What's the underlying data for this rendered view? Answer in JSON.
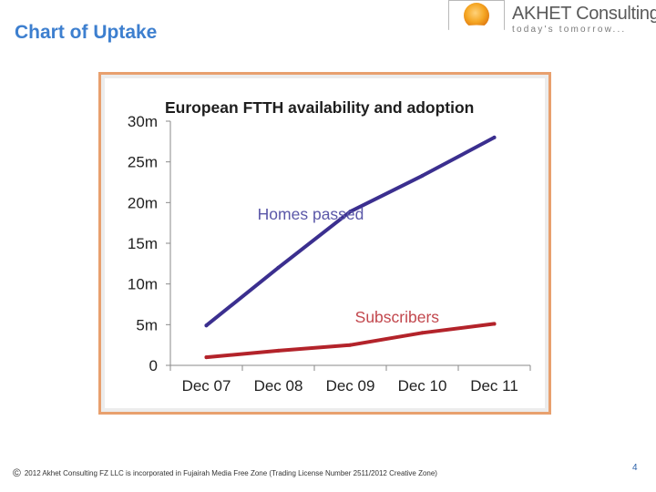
{
  "slide": {
    "title": "Chart of Uptake"
  },
  "logo": {
    "name": "AKHET Consulting",
    "tagline": "today's tomorrow...",
    "icon": "sun-logo-icon"
  },
  "chart_data": {
    "type": "line",
    "title": "European FTTH availability and adoption",
    "categories": [
      "Dec 07",
      "Dec 08",
      "Dec 09",
      "Dec 10",
      "Dec 11"
    ],
    "y_ticks": [
      "0",
      "5m",
      "10m",
      "15m",
      "20m",
      "25m",
      "30m"
    ],
    "ylim": [
      0,
      30
    ],
    "series": [
      {
        "name": "Homes passed",
        "color": "#3b2f8f",
        "values": [
          4.9,
          12.0,
          18.9,
          23.3,
          28.0
        ]
      },
      {
        "name": "Subscribers",
        "color": "#b3232a",
        "values": [
          1.0,
          1.8,
          2.5,
          4.0,
          5.1
        ]
      }
    ],
    "grid": false,
    "legend": "inline labels"
  },
  "footer": {
    "copyright": "©",
    "text": "2012 Akhet Consulting FZ LLC is incorporated in Fujairah Media Free Zone (Trading License Number 2511/2012 Creative Zone)"
  },
  "page": {
    "number": "4"
  }
}
